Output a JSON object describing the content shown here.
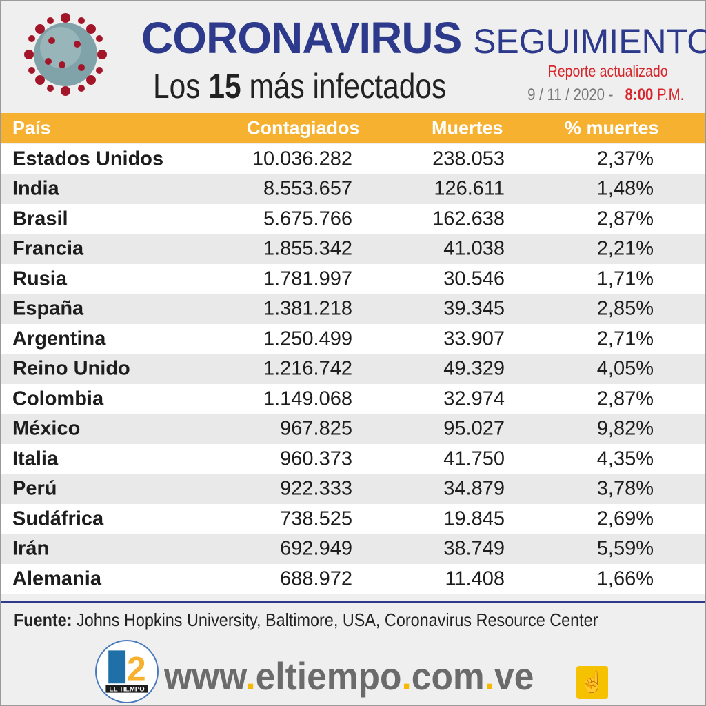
{
  "header": {
    "title_bold": "Coronavirus",
    "title_light": "SEGUIMIENTO",
    "subtitle_prefix": "Los",
    "subtitle_number": "15",
    "subtitle_suffix": "más infectados",
    "report_label": "Reporte actualizado",
    "date": "9 / 11 / 2020 -",
    "time": "8:00",
    "time_suffix": "P.M."
  },
  "table": {
    "columns": [
      "País",
      "Contagiados",
      "Muertes",
      "% muertes"
    ],
    "rows": [
      [
        "Estados Unidos",
        "10.036.282",
        "238.053",
        "2,37%"
      ],
      [
        "India",
        "8.553.657",
        "126.611",
        "1,48%"
      ],
      [
        "Brasil",
        "5.675.766",
        "162.638",
        "2,87%"
      ],
      [
        "Francia",
        "1.855.342",
        "41.038",
        "2,21%"
      ],
      [
        "Rusia",
        "1.781.997",
        "30.546",
        "1,71%"
      ],
      [
        "España",
        "1.381.218",
        "39.345",
        "2,85%"
      ],
      [
        "Argentina",
        "1.250.499",
        "33.907",
        "2,71%"
      ],
      [
        "Reino Unido",
        "1.216.742",
        "49.329",
        "4,05%"
      ],
      [
        "Colombia",
        "1.149.068",
        "32.974",
        "2,87%"
      ],
      [
        "México",
        "967.825",
        "95.027",
        "9,82%"
      ],
      [
        "Italia",
        "960.373",
        "41.750",
        "4,35%"
      ],
      [
        "Perú",
        "922.333",
        "34.879",
        "3,78%"
      ],
      [
        "Sudáfrica",
        "738.525",
        "19.845",
        "2,69%"
      ],
      [
        "Irán",
        "692.949",
        "38.749",
        "5,59%"
      ],
      [
        "Alemania",
        "688.972",
        "11.408",
        "1,66%"
      ]
    ]
  },
  "footer": {
    "source_label": "Fuente:",
    "source_text": "Johns Hopkins University, Baltimore, USA, Coronavirus Resource Center",
    "logo_text": "EL TIEMPO",
    "logo_number": "62",
    "url_parts": [
      "www",
      ".",
      "eltiempo",
      ".",
      "com",
      ".",
      "ve"
    ]
  },
  "colors": {
    "title": "#2d3a8c",
    "header_bar": "#f6b131",
    "accent_red": "#d7262b",
    "url_dot": "#f6b800"
  },
  "icons": {
    "virus": "coronavirus-illustration",
    "hand": "hand-pointer-icon"
  }
}
